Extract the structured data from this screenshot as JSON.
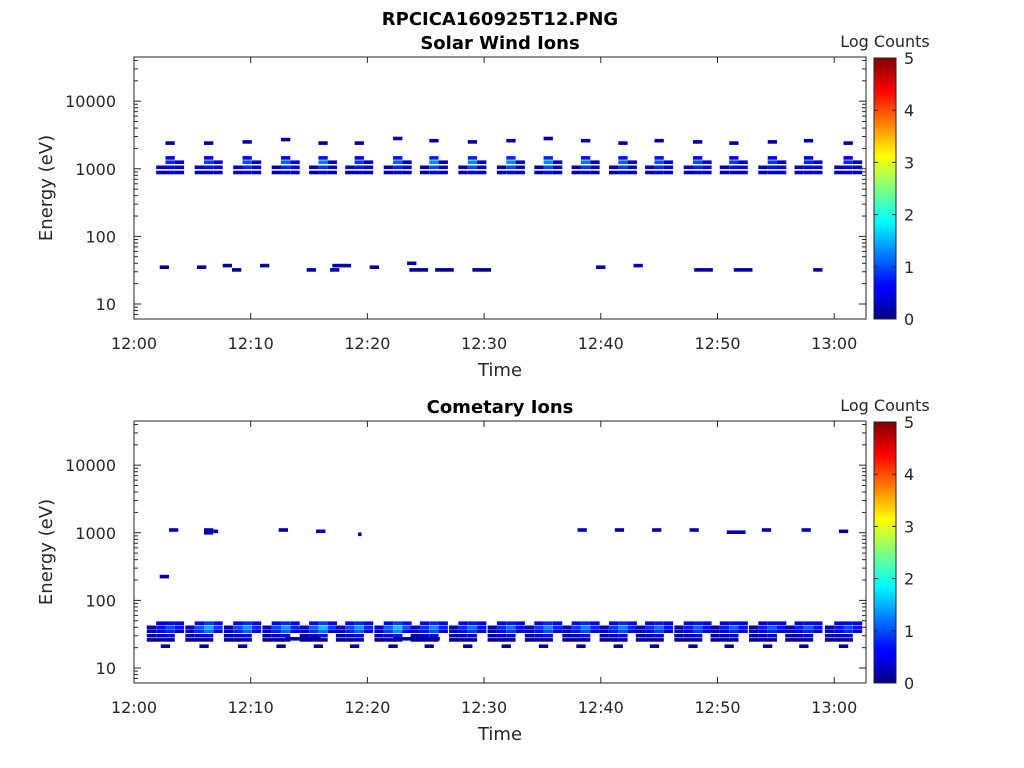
{
  "figure": {
    "title": "RPCICA160925T12.PNG"
  },
  "chart_data": [
    {
      "type": "heatmap",
      "title": "Solar Wind Ions",
      "xlabel": "Time",
      "ylabel": "Energy (eV)",
      "x_ticks": [
        "12:00",
        "12:10",
        "12:20",
        "12:30",
        "12:40",
        "12:50",
        "13:00"
      ],
      "x_range_minutes": [
        0,
        63
      ],
      "y_scale": "log",
      "y_ticks": [
        "10",
        "100",
        "1000",
        "10000"
      ],
      "ylim": [
        6,
        45000
      ],
      "colorbar": {
        "label": "Log Counts",
        "ticks": [
          "0",
          "1",
          "2",
          "3",
          "4",
          "5"
        ],
        "range": [
          0,
          5
        ],
        "colormap": "jet"
      },
      "cells": [
        {
          "t": 2.2,
          "dt": 0.8,
          "e": 35,
          "v": 0.1
        },
        {
          "t": 5.4,
          "dt": 0.8,
          "e": 35,
          "v": 0.1
        },
        {
          "t": 7.6,
          "dt": 0.8,
          "e": 37,
          "v": 0.2
        },
        {
          "t": 8.4,
          "dt": 0.8,
          "e": 32,
          "v": 0.1
        },
        {
          "t": 10.8,
          "dt": 0.8,
          "e": 37,
          "v": 0.2
        },
        {
          "t": 14.8,
          "dt": 0.8,
          "e": 32,
          "v": 0.2
        },
        {
          "t": 16.8,
          "dt": 0.8,
          "e": 32,
          "v": 0.2
        },
        {
          "t": 17.0,
          "dt": 1.6,
          "e": 37,
          "v": 0.2
        },
        {
          "t": 20.2,
          "dt": 0.8,
          "e": 35,
          "v": 0.1
        },
        {
          "t": 23.4,
          "dt": 0.8,
          "e": 40,
          "v": 0.2
        },
        {
          "t": 23.6,
          "dt": 1.6,
          "e": 32,
          "v": 0.1
        },
        {
          "t": 25.8,
          "dt": 1.6,
          "e": 32,
          "v": 0.1
        },
        {
          "t": 29.0,
          "dt": 1.6,
          "e": 32,
          "v": 0.1
        },
        {
          "t": 39.6,
          "dt": 0.8,
          "e": 35,
          "v": 0.2
        },
        {
          "t": 42.8,
          "dt": 0.8,
          "e": 37,
          "v": 0.3
        },
        {
          "t": 48.0,
          "dt": 1.6,
          "e": 32,
          "v": 0.2
        },
        {
          "t": 51.4,
          "dt": 1.6,
          "e": 32,
          "v": 0.2
        },
        {
          "t": 58.2,
          "dt": 0.8,
          "e": 32,
          "v": 0.2
        }
      ],
      "groups": [
        {
          "t": 2.7,
          "top": 2400,
          "core": [
            0.5,
            0.8,
            0.6,
            0.4
          ],
          "side": [
            0.4,
            0.5,
            0.3
          ]
        },
        {
          "t": 6.0,
          "top": 2400,
          "core": [
            0.5,
            0.9,
            0.7,
            0.4
          ],
          "side": [
            0.5,
            0.6,
            0.3
          ]
        },
        {
          "t": 9.3,
          "top": 2500,
          "core": [
            0.6,
            1.0,
            0.8,
            0.5
          ],
          "side": [
            0.4,
            0.5,
            0.3
          ]
        },
        {
          "t": 12.6,
          "top": 2700,
          "core": [
            0.6,
            1.1,
            0.8,
            0.5
          ],
          "side": [
            0.5,
            0.6,
            0.3
          ]
        },
        {
          "t": 15.8,
          "top": 2400,
          "core": [
            0.7,
            1.2,
            0.9,
            0.5
          ],
          "side": [
            0.3,
            0.4,
            0.2
          ]
        },
        {
          "t": 18.9,
          "top": 2400,
          "core": [
            0.5,
            0.9,
            0.7,
            0.4
          ],
          "side": [
            0.3,
            0.4,
            0.2
          ]
        },
        {
          "t": 22.2,
          "top": 2800,
          "core": [
            0.7,
            1.1,
            0.8,
            0.5
          ],
          "side": [
            0.3,
            0.4,
            0.2
          ]
        },
        {
          "t": 25.3,
          "top": 2600,
          "core": [
            0.8,
            1.3,
            1.0,
            0.6
          ],
          "side": [
            0.2,
            0.3,
            0.2
          ]
        },
        {
          "t": 28.6,
          "top": 2500,
          "core": [
            0.8,
            1.3,
            1.0,
            0.6
          ],
          "side": [
            0.3,
            0.4,
            0.2
          ]
        },
        {
          "t": 31.9,
          "top": 2600,
          "core": [
            0.8,
            1.3,
            1.0,
            0.6
          ],
          "side": [
            0.3,
            0.4,
            0.2
          ]
        },
        {
          "t": 35.1,
          "top": 2800,
          "core": [
            0.8,
            1.3,
            1.0,
            0.6
          ],
          "side": [
            0.3,
            0.4,
            0.2
          ]
        },
        {
          "t": 38.3,
          "top": 2600,
          "core": [
            0.7,
            1.2,
            0.9,
            0.5
          ],
          "side": [
            0.3,
            0.4,
            0.2
          ]
        },
        {
          "t": 41.5,
          "top": 2400,
          "core": [
            0.7,
            1.1,
            0.9,
            0.5
          ],
          "side": [
            0.3,
            0.4,
            0.2
          ]
        },
        {
          "t": 44.6,
          "top": 2600,
          "core": [
            0.7,
            1.0,
            0.8,
            0.5
          ],
          "side": [
            0.4,
            0.5,
            0.3
          ]
        },
        {
          "t": 47.9,
          "top": 2500,
          "core": [
            0.6,
            1.0,
            0.8,
            0.5
          ],
          "side": [
            0.4,
            0.5,
            0.3
          ]
        },
        {
          "t": 51.0,
          "top": 2400,
          "core": [
            0.6,
            0.9,
            0.7,
            0.4
          ],
          "side": [
            0.4,
            0.5,
            0.3
          ]
        },
        {
          "t": 54.3,
          "top": 2500,
          "core": [
            0.6,
            0.9,
            0.7,
            0.4
          ],
          "side": [
            0.4,
            0.5,
            0.3
          ]
        },
        {
          "t": 57.4,
          "top": 2600,
          "core": [
            0.5,
            0.8,
            0.6,
            0.4
          ],
          "side": [
            0.4,
            0.5,
            0.3
          ]
        },
        {
          "t": 60.8,
          "top": 2400,
          "core": [
            0.5,
            0.8,
            0.6,
            0.4
          ],
          "side": [
            0.3,
            0.4,
            0.2
          ]
        }
      ]
    },
    {
      "type": "heatmap",
      "title": "Cometary Ions",
      "xlabel": "Time",
      "ylabel": "Energy (eV)",
      "x_ticks": [
        "12:00",
        "12:10",
        "12:20",
        "12:30",
        "12:40",
        "12:50",
        "13:00"
      ],
      "x_range_minutes": [
        0,
        63
      ],
      "y_scale": "log",
      "y_ticks": [
        "10",
        "100",
        "1000",
        "10000"
      ],
      "ylim": [
        6,
        45000
      ],
      "colorbar": {
        "label": "Log Counts",
        "ticks": [
          "0",
          "1",
          "2",
          "3",
          "4",
          "5"
        ],
        "range": [
          0,
          5
        ],
        "colormap": "jet"
      },
      "cells": [
        {
          "t": 2.2,
          "dt": 0.8,
          "e": 225,
          "v": 0.2
        },
        {
          "t": 3.0,
          "dt": 0.8,
          "e": 1100,
          "v": 0.3
        },
        {
          "t": 6.0,
          "dt": 0.8,
          "e": 1100,
          "v": 0.2
        },
        {
          "t": 6.0,
          "dt": 0.8,
          "e": 1000,
          "v": 0.2
        },
        {
          "t": 6.8,
          "dt": 0.4,
          "e": 1050,
          "v": 0.2
        },
        {
          "t": 12.4,
          "dt": 0.8,
          "e": 1100,
          "v": 0.2
        },
        {
          "t": 15.6,
          "dt": 0.8,
          "e": 1050,
          "v": 0.2
        },
        {
          "t": 19.2,
          "dt": 0.3,
          "e": 950,
          "v": 0.1
        },
        {
          "t": 38.0,
          "dt": 0.8,
          "e": 1100,
          "v": 0.3
        },
        {
          "t": 41.2,
          "dt": 0.8,
          "e": 1100,
          "v": 0.2
        },
        {
          "t": 44.4,
          "dt": 0.8,
          "e": 1100,
          "v": 0.2
        },
        {
          "t": 47.6,
          "dt": 0.8,
          "e": 1100,
          "v": 0.2
        },
        {
          "t": 50.8,
          "dt": 1.6,
          "e": 1020,
          "v": 0.2
        },
        {
          "t": 53.8,
          "dt": 0.8,
          "e": 1100,
          "v": 0.3
        },
        {
          "t": 57.2,
          "dt": 0.8,
          "e": 1100,
          "v": 0.3
        },
        {
          "t": 60.4,
          "dt": 0.8,
          "e": 1050,
          "v": 0.2
        },
        {
          "t": 22.2,
          "dt": 4.0,
          "e": 27,
          "v": 0.1
        },
        {
          "t": 13.0,
          "dt": 3.0,
          "e": 27,
          "v": 0.1
        }
      ],
      "groups": [
        {
          "t": 2.7,
          "peak": 35,
          "core": [
            0.6,
            1.0,
            0.8,
            0.5
          ],
          "side": [
            0.5,
            0.7,
            0.4
          ]
        },
        {
          "t": 6.0,
          "peak": 35,
          "core": [
            0.9,
            1.5,
            1.2,
            0.6
          ],
          "side": [
            0.6,
            0.9,
            0.5
          ]
        },
        {
          "t": 9.3,
          "peak": 35,
          "core": [
            0.8,
            1.4,
            1.1,
            0.6
          ],
          "side": [
            0.6,
            0.8,
            0.5
          ]
        },
        {
          "t": 12.6,
          "peak": 35,
          "core": [
            0.8,
            1.4,
            1.1,
            0.6
          ],
          "side": [
            0.6,
            0.8,
            0.5
          ]
        },
        {
          "t": 15.8,
          "peak": 35,
          "core": [
            0.9,
            1.6,
            1.2,
            0.6
          ],
          "side": [
            0.6,
            0.9,
            0.5
          ]
        },
        {
          "t": 18.9,
          "peak": 35,
          "core": [
            0.8,
            1.4,
            1.1,
            0.6
          ],
          "side": [
            0.6,
            0.8,
            0.5
          ]
        },
        {
          "t": 22.2,
          "peak": 35,
          "core": [
            0.9,
            1.6,
            1.3,
            0.7
          ],
          "side": [
            0.7,
            1.0,
            0.6
          ]
        },
        {
          "t": 25.3,
          "peak": 33,
          "core": [
            0.8,
            1.3,
            1.0,
            0.6
          ],
          "side": [
            0.6,
            0.8,
            0.5
          ]
        },
        {
          "t": 28.6,
          "peak": 33,
          "core": [
            0.7,
            1.2,
            0.9,
            0.5
          ],
          "side": [
            0.5,
            0.7,
            0.4
          ]
        },
        {
          "t": 31.9,
          "peak": 33,
          "core": [
            0.7,
            1.2,
            0.9,
            0.5
          ],
          "side": [
            0.5,
            0.7,
            0.4
          ]
        },
        {
          "t": 35.1,
          "peak": 33,
          "core": [
            0.8,
            1.3,
            1.0,
            0.6
          ],
          "side": [
            0.6,
            0.8,
            0.5
          ]
        },
        {
          "t": 38.3,
          "peak": 33,
          "core": [
            0.8,
            1.3,
            1.0,
            0.6
          ],
          "side": [
            0.6,
            0.8,
            0.5
          ]
        },
        {
          "t": 41.5,
          "peak": 33,
          "core": [
            0.8,
            1.3,
            1.0,
            0.6
          ],
          "side": [
            0.6,
            0.8,
            0.5
          ]
        },
        {
          "t": 44.6,
          "peak": 33,
          "core": [
            0.7,
            1.2,
            0.9,
            0.5
          ],
          "side": [
            0.5,
            0.7,
            0.4
          ]
        },
        {
          "t": 47.9,
          "peak": 33,
          "core": [
            0.7,
            1.1,
            0.9,
            0.5
          ],
          "side": [
            0.5,
            0.7,
            0.4
          ]
        },
        {
          "t": 51.0,
          "peak": 33,
          "core": [
            0.6,
            1.1,
            0.8,
            0.5
          ],
          "side": [
            0.5,
            0.7,
            0.4
          ]
        },
        {
          "t": 54.3,
          "peak": 33,
          "core": [
            0.6,
            1.1,
            0.8,
            0.5
          ],
          "side": [
            0.5,
            0.7,
            0.4
          ]
        },
        {
          "t": 57.4,
          "peak": 33,
          "core": [
            0.6,
            1.1,
            0.8,
            0.5
          ],
          "side": [
            0.5,
            0.7,
            0.4
          ]
        },
        {
          "t": 60.8,
          "peak": 33,
          "core": [
            0.6,
            1.0,
            0.8,
            0.5
          ],
          "side": [
            0.5,
            0.7,
            0.4
          ]
        }
      ]
    }
  ]
}
